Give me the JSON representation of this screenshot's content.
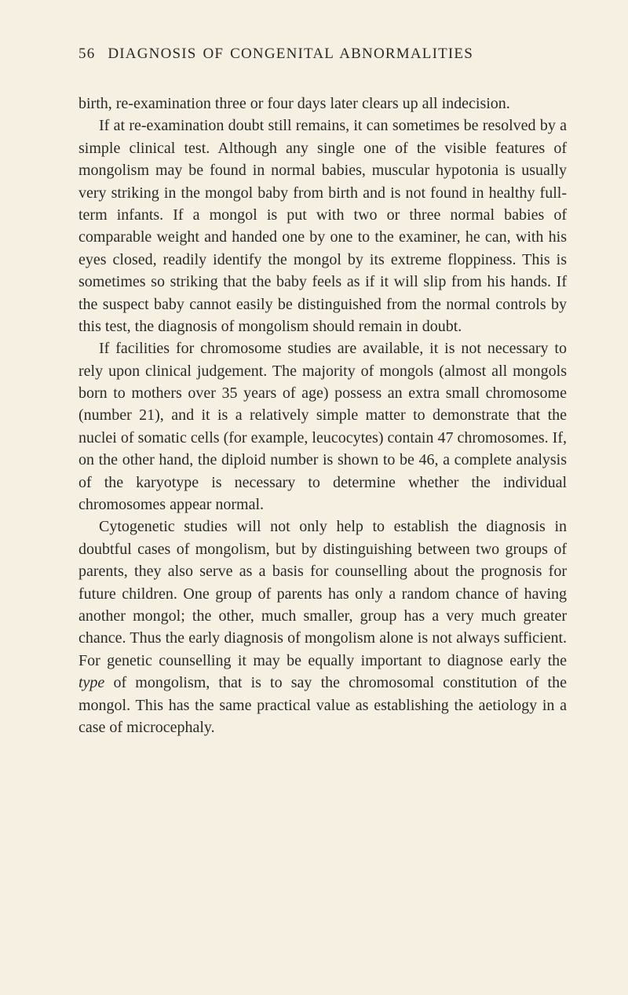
{
  "header": {
    "page_number": "56",
    "title": "DIAGNOSIS OF CONGENITAL ABNORMALITIES"
  },
  "paragraphs": {
    "p1": "birth, re-examination three or four days later clears up all indecision.",
    "p2": "If at re-examination doubt still remains, it can sometimes be resolved by a simple clinical test. Although any single one of the visible features of mongolism may be found in normal babies, muscular hypotonia is usually very striking in the mongol baby from birth and is not found in healthy full-term infants. If a mongol is put with two or three normal babies of comparable weight and handed one by one to the examiner, he can, with his eyes closed, readily identify the mongol by its extreme floppiness. This is sometimes so striking that the baby feels as if it will slip from his hands. If the suspect baby cannot easily be distinguished from the normal controls by this test, the diagnosis of mongolism should remain in doubt.",
    "p3": "If facilities for chromosome studies are available, it is not necessary to rely upon clinical judgement. The majority of mongols (almost all mongols born to mothers over 35 years of age) possess an extra small chromosome (number 21), and it is a relatively simple matter to demonstrate that the nuclei of somatic cells (for example, leucocytes) contain 47 chromosomes. If, on the other hand, the diploid number is shown to be 46, a complete analysis of the karyotype is necessary to determine whether the individual chromosomes appear normal.",
    "p4_part1": "Cytogenetic studies will not only help to establish the diagnosis in doubtful cases of mongolism, but by distinguishing between two groups of parents, they also serve as a basis for counselling about the prognosis for future children. One group of parents has only a random chance of having another mongol; the other, much smaller, group has a very much greater chance. Thus the early diagnosis of mongolism alone is not always sufficient. For genetic counselling it may be equally important to diagnose early the ",
    "p4_italic": "type",
    "p4_part2": " of mongolism, that is to say the chromosomal constitution of the mongol. This has the same practical value as establishing the aetiology in a case of microcephaly."
  }
}
